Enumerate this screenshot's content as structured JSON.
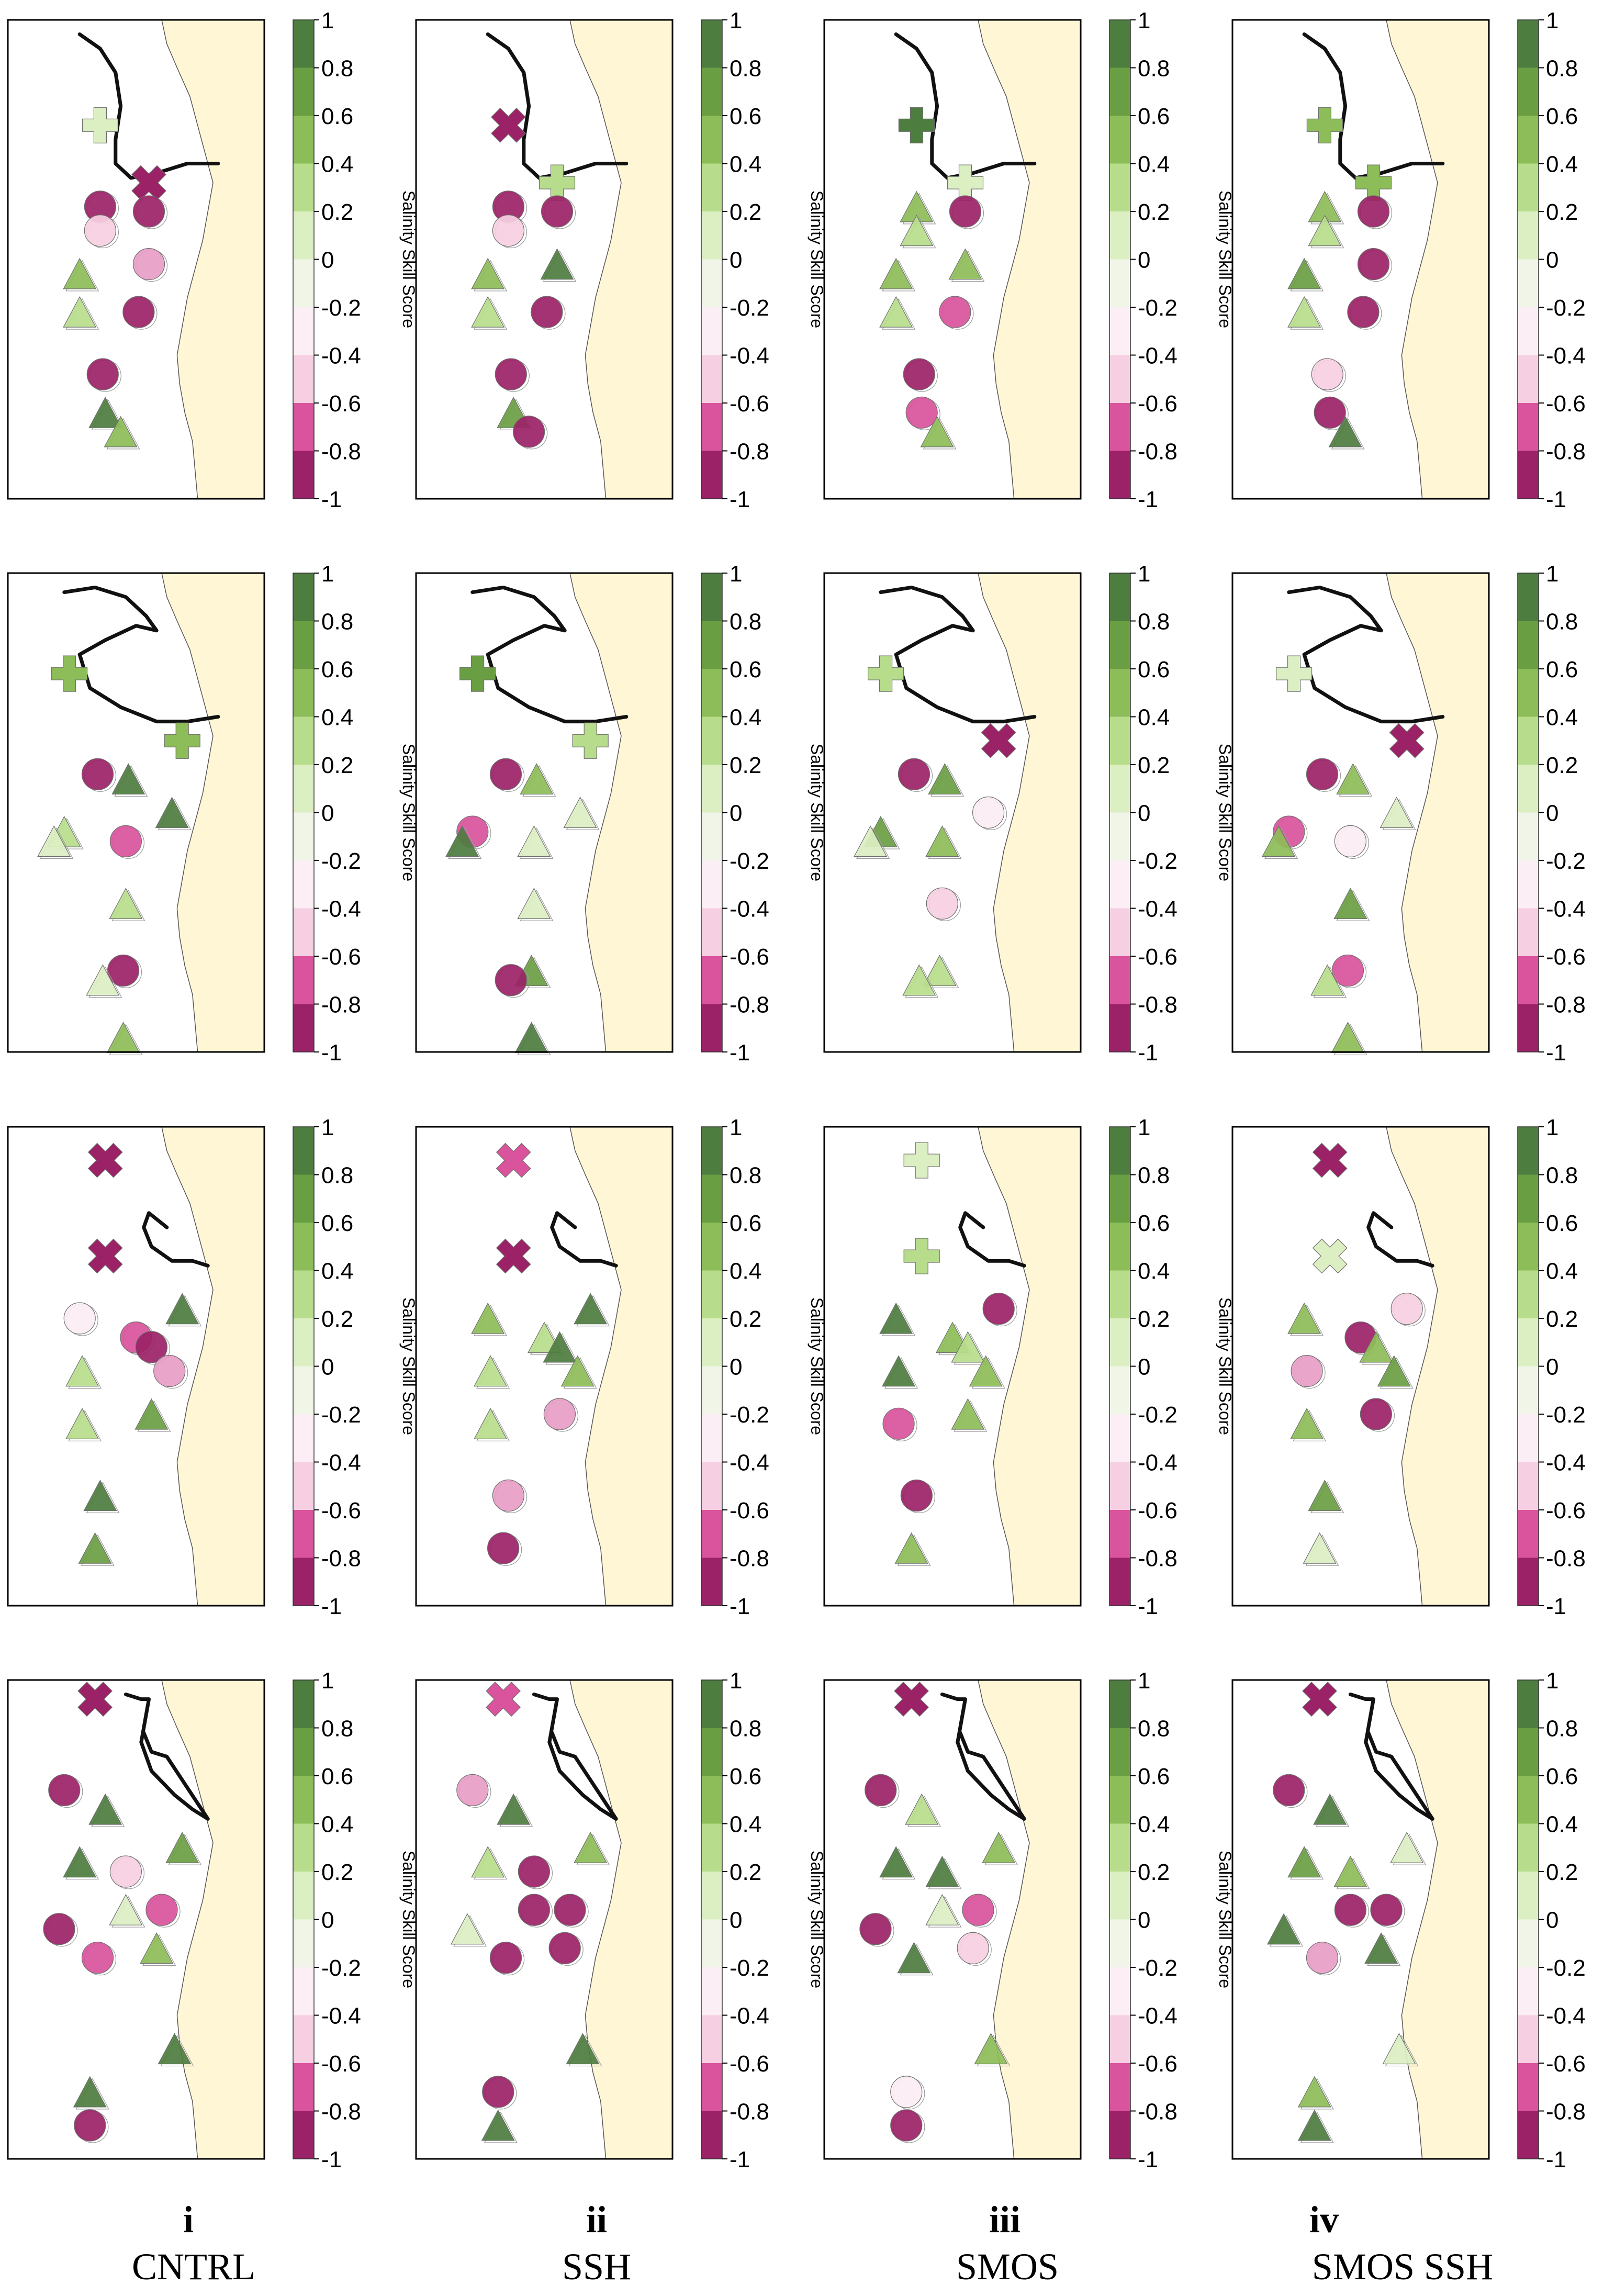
{
  "figure": {
    "colorbar": {
      "label": "Salinity Skill Score",
      "ticks": [
        "1",
        "0.8",
        "0.6",
        "0.4",
        "0.2",
        "0",
        "-0.2",
        "-0.4",
        "-0.6",
        "-0.8",
        "-1"
      ],
      "colors_top_to_bottom": [
        "#4d7d3f",
        "#6a9e43",
        "#8dbd58",
        "#b7dd8c",
        "#dcefc3",
        "#f1f5e8",
        "#fbeef4",
        "#f6cfe2",
        "#e89dc5",
        "#d9549c",
        "#b32e78",
        "#9b2266"
      ]
    },
    "columns": [
      {
        "number": "i",
        "name": "CNTRL"
      },
      {
        "number": "ii",
        "name": "SSH"
      },
      {
        "number": "iii",
        "name": "SMOS"
      },
      {
        "number": "iv",
        "name": "SMOS SSH"
      }
    ],
    "land_color": "#fff6d6",
    "coast_color": "#555555",
    "front_color": "#111111"
  },
  "chart_data": {
    "type": "scatter",
    "description_layout": "4x4 grid of map panels; rows share marker positions, columns are experiments",
    "value_range": [
      -1,
      1
    ],
    "colorbar_label": "Salinity Skill Score",
    "marker_types": [
      "cross",
      "x",
      "circle",
      "triangle"
    ],
    "panels": [
      {
        "row": 1,
        "column": "CNTRL",
        "markers": [
          {
            "shape": "cross",
            "v": 0.1
          },
          {
            "shape": "x",
            "v": -0.9
          },
          {
            "shape": "circle",
            "v": -0.95
          },
          {
            "shape": "circle",
            "v": -0.9
          },
          {
            "shape": "circle",
            "v": -0.25
          },
          {
            "shape": "triangle",
            "v": 0.6
          },
          {
            "shape": "circle",
            "v": -0.5
          },
          {
            "shape": "triangle",
            "v": 0.3
          },
          {
            "shape": "circle",
            "v": -0.9
          },
          {
            "shape": "circle",
            "v": -0.85
          },
          {
            "shape": "triangle",
            "v": 0.8
          },
          {
            "shape": "triangle",
            "v": 0.5
          }
        ]
      },
      {
        "row": 1,
        "column": "SSH",
        "markers": [
          {
            "shape": "x",
            "v": -0.9
          },
          {
            "shape": "cross",
            "v": 0.3
          },
          {
            "shape": "circle",
            "v": -0.9
          },
          {
            "shape": "circle",
            "v": -0.95
          },
          {
            "shape": "circle",
            "v": -0.25
          },
          {
            "shape": "triangle",
            "v": 0.4
          },
          {
            "shape": "triangle",
            "v": 0.8
          },
          {
            "shape": "triangle",
            "v": 0.3
          },
          {
            "shape": "circle",
            "v": -0.9
          },
          {
            "shape": "circle",
            "v": -0.85
          },
          {
            "shape": "triangle",
            "v": 0.7
          },
          {
            "shape": "circle",
            "v": -0.85
          }
        ]
      },
      {
        "row": 1,
        "column": "SMOS",
        "markers": [
          {
            "shape": "cross",
            "v": 0.8
          },
          {
            "shape": "cross",
            "v": 0.15
          },
          {
            "shape": "triangle",
            "v": 0.6
          },
          {
            "shape": "circle",
            "v": -0.9
          },
          {
            "shape": "triangle",
            "v": 0.3
          },
          {
            "shape": "triangle",
            "v": 0.6
          },
          {
            "shape": "triangle",
            "v": 0.4
          },
          {
            "shape": "triangle",
            "v": 0.3
          },
          {
            "shape": "circle",
            "v": -0.75
          },
          {
            "shape": "circle",
            "v": -0.8
          },
          {
            "shape": "circle",
            "v": -0.7
          },
          {
            "shape": "triangle",
            "v": 0.5
          }
        ]
      },
      {
        "row": 1,
        "column": "SMOS SSH",
        "markers": [
          {
            "shape": "cross",
            "v": 0.6
          },
          {
            "shape": "cross",
            "v": 0.4
          },
          {
            "shape": "triangle",
            "v": 0.5
          },
          {
            "shape": "circle",
            "v": -0.9
          },
          {
            "shape": "triangle",
            "v": 0.3
          },
          {
            "shape": "triangle",
            "v": 0.7
          },
          {
            "shape": "circle",
            "v": -0.9
          },
          {
            "shape": "triangle",
            "v": 0.3
          },
          {
            "shape": "circle",
            "v": -0.9
          },
          {
            "shape": "circle",
            "v": -0.35
          },
          {
            "shape": "circle",
            "v": -0.85
          },
          {
            "shape": "triangle",
            "v": 0.8
          }
        ]
      },
      {
        "row": 2,
        "column": "CNTRL",
        "markers": [
          {
            "shape": "cross",
            "v": 0.5
          },
          {
            "shape": "cross",
            "v": 0.6
          },
          {
            "shape": "circle",
            "v": -0.85
          },
          {
            "shape": "triangle",
            "v": 0.8
          },
          {
            "shape": "triangle",
            "v": 0.25
          },
          {
            "shape": "triangle",
            "v": 0.9
          },
          {
            "shape": "triangle",
            "v": 0.15
          },
          {
            "shape": "circle",
            "v": -0.7
          },
          {
            "shape": "triangle",
            "v": 0.3
          },
          {
            "shape": "circle",
            "v": -0.85
          },
          {
            "shape": "triangle",
            "v": 0.2
          },
          {
            "shape": "triangle",
            "v": 0.6
          }
        ]
      },
      {
        "row": 2,
        "column": "SSH",
        "markers": [
          {
            "shape": "cross",
            "v": 0.7
          },
          {
            "shape": "cross",
            "v": 0.3
          },
          {
            "shape": "circle",
            "v": -0.85
          },
          {
            "shape": "triangle",
            "v": 0.6
          },
          {
            "shape": "circle",
            "v": -0.75
          },
          {
            "shape": "triangle",
            "v": 0.2
          },
          {
            "shape": "triangle",
            "v": 0.8
          },
          {
            "shape": "triangle",
            "v": 0.15
          },
          {
            "shape": "triangle",
            "v": 0.2
          },
          {
            "shape": "triangle",
            "v": 0.7
          },
          {
            "shape": "circle",
            "v": -0.85
          },
          {
            "shape": "triangle",
            "v": 0.9
          }
        ]
      },
      {
        "row": 2,
        "column": "SMOS",
        "markers": [
          {
            "shape": "cross",
            "v": 0.3
          },
          {
            "shape": "x",
            "v": -0.85
          },
          {
            "shape": "circle",
            "v": -0.85
          },
          {
            "shape": "triangle",
            "v": 0.7
          },
          {
            "shape": "triangle",
            "v": 0.75
          },
          {
            "shape": "circle",
            "v": -0.1
          },
          {
            "shape": "triangle",
            "v": 0.2
          },
          {
            "shape": "triangle",
            "v": 0.5
          },
          {
            "shape": "circle",
            "v": -0.3
          },
          {
            "shape": "triangle",
            "v": 0.3
          },
          {
            "shape": "triangle",
            "v": 0.3
          }
        ]
      },
      {
        "row": 2,
        "column": "SMOS SSH",
        "markers": [
          {
            "shape": "cross",
            "v": 0.2
          },
          {
            "shape": "x",
            "v": -0.85
          },
          {
            "shape": "circle",
            "v": -0.85
          },
          {
            "shape": "triangle",
            "v": 0.4
          },
          {
            "shape": "circle",
            "v": -0.6
          },
          {
            "shape": "triangle",
            "v": 0.15
          },
          {
            "shape": "triangle",
            "v": 0.6
          },
          {
            "shape": "circle",
            "v": -0.15
          },
          {
            "shape": "triangle",
            "v": 0.7
          },
          {
            "shape": "circle",
            "v": -0.7
          },
          {
            "shape": "triangle",
            "v": 0.35
          },
          {
            "shape": "triangle",
            "v": 0.6
          }
        ]
      },
      {
        "row": 3,
        "column": "CNTRL",
        "markers": [
          {
            "shape": "x",
            "v": -0.85
          },
          {
            "shape": "x",
            "v": -0.8
          },
          {
            "shape": "circle",
            "v": -0.15
          },
          {
            "shape": "triangle",
            "v": 0.9
          },
          {
            "shape": "circle",
            "v": -0.75
          },
          {
            "shape": "circle",
            "v": -0.8
          },
          {
            "shape": "triangle",
            "v": 0.3
          },
          {
            "shape": "circle",
            "v": -0.5
          },
          {
            "shape": "triangle",
            "v": 0.25
          },
          {
            "shape": "triangle",
            "v": 0.7
          },
          {
            "shape": "triangle",
            "v": 0.8
          },
          {
            "shape": "triangle",
            "v": 0.7
          }
        ]
      },
      {
        "row": 3,
        "column": "SSH",
        "markers": [
          {
            "shape": "x",
            "v": -0.7
          },
          {
            "shape": "x",
            "v": -0.85
          },
          {
            "shape": "triangle",
            "v": 0.6
          },
          {
            "shape": "triangle",
            "v": 0.9
          },
          {
            "shape": "triangle",
            "v": 0.25
          },
          {
            "shape": "triangle",
            "v": 0.8
          },
          {
            "shape": "triangle",
            "v": 0.3
          },
          {
            "shape": "triangle",
            "v": 0.5
          },
          {
            "shape": "triangle",
            "v": 0.3
          },
          {
            "shape": "circle",
            "v": -0.5
          },
          {
            "shape": "circle",
            "v": -0.5
          },
          {
            "shape": "circle",
            "v": -0.85
          }
        ]
      },
      {
        "row": 3,
        "column": "SMOS",
        "markers": [
          {
            "shape": "cross",
            "v": 0.2
          },
          {
            "shape": "cross",
            "v": 0.25
          },
          {
            "shape": "triangle",
            "v": 0.8
          },
          {
            "shape": "circle",
            "v": -0.9
          },
          {
            "shape": "triangle",
            "v": 0.5
          },
          {
            "shape": "triangle",
            "v": 0.3
          },
          {
            "shape": "triangle",
            "v": 0.8
          },
          {
            "shape": "triangle",
            "v": 0.6
          },
          {
            "shape": "circle",
            "v": -0.7
          },
          {
            "shape": "triangle",
            "v": 0.6
          },
          {
            "shape": "circle",
            "v": -0.85
          },
          {
            "shape": "triangle",
            "v": 0.5
          }
        ]
      },
      {
        "row": 3,
        "column": "SMOS SSH",
        "markers": [
          {
            "shape": "x",
            "v": -0.85
          },
          {
            "shape": "x",
            "v": 0.1
          },
          {
            "shape": "triangle",
            "v": 0.6
          },
          {
            "shape": "circle",
            "v": -0.25
          },
          {
            "shape": "circle",
            "v": -0.9
          },
          {
            "shape": "triangle",
            "v": 0.4
          },
          {
            "shape": "circle",
            "v": -0.45
          },
          {
            "shape": "triangle",
            "v": 0.75
          },
          {
            "shape": "triangle",
            "v": 0.4
          },
          {
            "shape": "circle",
            "v": -0.9
          },
          {
            "shape": "triangle",
            "v": 0.7
          },
          {
            "shape": "triangle",
            "v": 0.2
          }
        ]
      },
      {
        "row": 4,
        "column": "CNTRL",
        "markers": [
          {
            "shape": "x",
            "v": -0.9
          },
          {
            "shape": "circle",
            "v": -0.85
          },
          {
            "shape": "triangle",
            "v": 0.8
          },
          {
            "shape": "triangle",
            "v": 0.8
          },
          {
            "shape": "circle",
            "v": -0.35
          },
          {
            "shape": "triangle",
            "v": 0.7
          },
          {
            "shape": "circle",
            "v": -0.8
          },
          {
            "shape": "triangle",
            "v": 0.15
          },
          {
            "shape": "circle",
            "v": -0.7
          },
          {
            "shape": "circle",
            "v": -0.65
          },
          {
            "shape": "triangle",
            "v": 0.5
          },
          {
            "shape": "triangle",
            "v": 0.9
          },
          {
            "shape": "triangle",
            "v": 0.8
          },
          {
            "shape": "circle",
            "v": -0.9
          }
        ]
      },
      {
        "row": 4,
        "column": "SSH",
        "markers": [
          {
            "shape": "x",
            "v": -0.75
          },
          {
            "shape": "circle",
            "v": -0.55
          },
          {
            "shape": "triangle",
            "v": 0.8
          },
          {
            "shape": "triangle",
            "v": 0.3
          },
          {
            "shape": "circle",
            "v": -0.85
          },
          {
            "shape": "triangle",
            "v": 0.6
          },
          {
            "shape": "triangle",
            "v": 0.2
          },
          {
            "shape": "circle",
            "v": -0.9
          },
          {
            "shape": "circle",
            "v": -0.95
          },
          {
            "shape": "circle",
            "v": -0.9
          },
          {
            "shape": "circle",
            "v": -0.85
          },
          {
            "shape": "triangle",
            "v": 0.8
          },
          {
            "shape": "circle",
            "v": -0.9
          },
          {
            "shape": "triangle",
            "v": 0.9
          }
        ]
      },
      {
        "row": 4,
        "column": "SMOS",
        "markers": [
          {
            "shape": "x",
            "v": -0.9
          },
          {
            "shape": "circle",
            "v": -0.85
          },
          {
            "shape": "triangle",
            "v": 0.3
          },
          {
            "shape": "triangle",
            "v": 0.8
          },
          {
            "shape": "triangle",
            "v": 0.8
          },
          {
            "shape": "triangle",
            "v": 0.6
          },
          {
            "shape": "circle",
            "v": -0.85
          },
          {
            "shape": "triangle",
            "v": 0.2
          },
          {
            "shape": "circle",
            "v": -0.6
          },
          {
            "shape": "triangle",
            "v": 0.85
          },
          {
            "shape": "circle",
            "v": -0.3
          },
          {
            "shape": "triangle",
            "v": 0.5
          },
          {
            "shape": "circle",
            "v": -0.2
          },
          {
            "shape": "circle",
            "v": -0.8
          }
        ]
      },
      {
        "row": 4,
        "column": "SMOS SSH",
        "markers": [
          {
            "shape": "x",
            "v": -0.9
          },
          {
            "shape": "circle",
            "v": -0.9
          },
          {
            "shape": "triangle",
            "v": 0.8
          },
          {
            "shape": "triangle",
            "v": 0.7
          },
          {
            "shape": "triangle",
            "v": 0.5
          },
          {
            "shape": "triangle",
            "v": 0.2
          },
          {
            "shape": "triangle",
            "v": 0.9
          },
          {
            "shape": "circle",
            "v": -0.85
          },
          {
            "shape": "circle",
            "v": -0.9
          },
          {
            "shape": "circle",
            "v": -0.45
          },
          {
            "shape": "triangle",
            "v": 0.8
          },
          {
            "shape": "triangle",
            "v": 0.15
          },
          {
            "shape": "triangle",
            "v": 0.4
          },
          {
            "shape": "triangle",
            "v": 0.8
          }
        ]
      }
    ]
  }
}
